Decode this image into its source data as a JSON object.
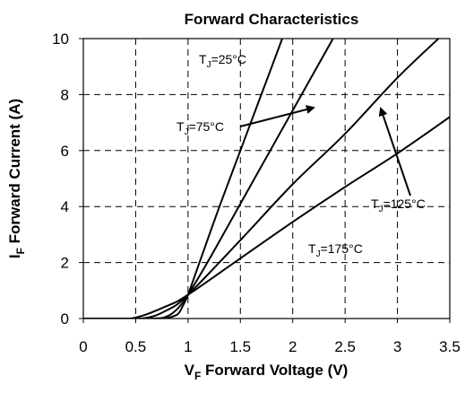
{
  "chart_data": {
    "type": "line",
    "title": "Forward Characteristics",
    "xlabel": {
      "main": "V",
      "sub": "F",
      "rest": " Forward Voltage (V)"
    },
    "ylabel": {
      "main": "I",
      "sub": "F",
      "rest": " Forward Current (A)"
    },
    "xlim": [
      0,
      3.5
    ],
    "ylim": [
      0,
      10
    ],
    "x_ticks": [
      0,
      0.5,
      1,
      1.5,
      2,
      2.5,
      3,
      3.5
    ],
    "x_tick_labels": [
      "0",
      "0.5",
      "1",
      "1.5",
      "2",
      "2.5",
      "3",
      "3.5"
    ],
    "y_ticks": [
      0,
      2,
      4,
      6,
      8,
      10
    ],
    "y_tick_labels": [
      "0",
      "2",
      "4",
      "6",
      "8",
      "10"
    ],
    "grid": true,
    "series": [
      {
        "name": "TJ=25°C",
        "label_parts": {
          "main": "T",
          "sub": "J",
          "rest": "=25°C"
        },
        "x": [
          0,
          0.7,
          0.8,
          0.9,
          0.95,
          1.0,
          1.1,
          1.3,
          1.5,
          1.7,
          1.9,
          2.0
        ],
        "y": [
          0,
          0,
          0.02,
          0.15,
          0.45,
          0.85,
          1.9,
          4.0,
          6.0,
          8.0,
          10.0,
          11.1
        ]
      },
      {
        "name": "TJ=75°C",
        "label_parts": {
          "main": "T",
          "sub": "J",
          "rest": "=75°C"
        },
        "x": [
          0,
          0.65,
          0.8,
          0.9,
          1.0,
          1.2,
          1.5,
          1.8,
          2.1,
          2.4
        ],
        "y": [
          0,
          0,
          0.08,
          0.35,
          0.85,
          2.1,
          4.1,
          6.1,
          8.1,
          10.1
        ]
      },
      {
        "name": "TJ=125°C",
        "label_parts": {
          "main": "T",
          "sub": "J",
          "rest": "=125°C"
        },
        "x": [
          0,
          0.55,
          0.8,
          1.0,
          1.5,
          2.0,
          2.5,
          3.0,
          3.45
        ],
        "y": [
          0,
          0,
          0.3,
          0.85,
          2.8,
          4.8,
          6.6,
          8.6,
          10.2
        ]
      },
      {
        "name": "TJ=175°C",
        "label_parts": {
          "main": "T",
          "sub": "J",
          "rest": "=175°C"
        },
        "x": [
          0,
          0.45,
          0.8,
          1.0,
          1.5,
          2.0,
          2.5,
          3.0,
          3.5
        ],
        "y": [
          0,
          0,
          0.45,
          0.85,
          2.15,
          3.45,
          4.7,
          5.9,
          7.2
        ]
      }
    ],
    "annotations": [
      {
        "series": 0,
        "text": {
          "main": "T",
          "sub": "J",
          "rest": "=25°C"
        }
      },
      {
        "series": 1,
        "text": {
          "main": "T",
          "sub": "J",
          "rest": "=75°C"
        }
      },
      {
        "series": 2,
        "text": {
          "main": "T",
          "sub": "J",
          "rest": "=125°C"
        }
      },
      {
        "series": 3,
        "text": {
          "main": "T",
          "sub": "J",
          "rest": "=175°C"
        }
      }
    ]
  }
}
